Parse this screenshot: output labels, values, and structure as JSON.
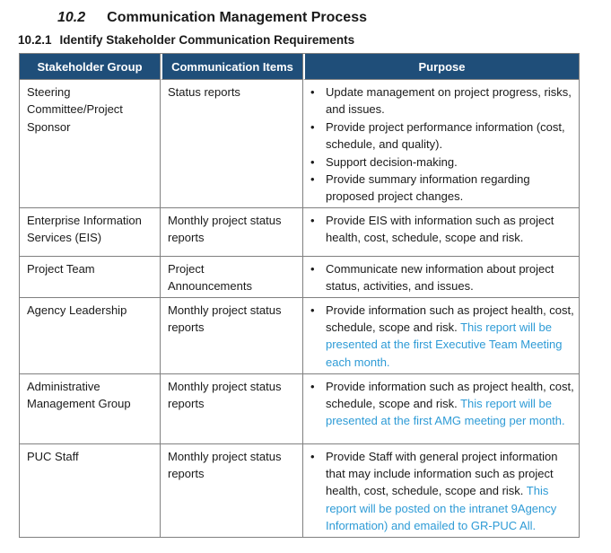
{
  "document": {
    "section": {
      "number": "10.2",
      "title": "Communication Management Process"
    },
    "subsection": {
      "number": "10.2.1",
      "title": "Identify Stakeholder Communication Requirements"
    }
  },
  "colors": {
    "header_bg": "#1F4E79",
    "header_text": "#FFFFFF",
    "body_text": "#1A1A1A",
    "accent_blue": "#2E9BD6",
    "border": "#808080"
  },
  "table": {
    "headers": [
      "Stakeholder Group",
      "Communication Items",
      "Purpose"
    ],
    "rows": [
      {
        "stakeholder": "Steering Committee/Project Sponsor",
        "items": "Status reports",
        "purpose": [
          [
            {
              "text": "Update management on project progress, risks, and issues."
            }
          ],
          [
            {
              "text": "Provide project performance information (cost, schedule, and quality)."
            }
          ],
          [
            {
              "text": "Support decision-making."
            }
          ],
          [
            {
              "text": "Provide summary information regarding proposed project changes."
            }
          ]
        ]
      },
      {
        "stakeholder": "Enterprise Information Services (EIS)",
        "items": "Monthly project status reports",
        "purpose": [
          [
            {
              "text": "Provide EIS with information such as project health, cost, schedule, scope and risk."
            }
          ]
        ]
      },
      {
        "stakeholder": "Project Team",
        "items": "Project\nAnnouncements",
        "purpose": [
          [
            {
              "text": "Communicate new information about project status, activities, and issues."
            }
          ]
        ]
      },
      {
        "stakeholder": "Agency Leadership",
        "items": "Monthly project status reports",
        "purpose": [
          [
            {
              "text": "Provide information such as project health, cost, schedule, scope and risk. "
            },
            {
              "text": "This report will be presented at the first Executive Team Meeting each month.",
              "highlight": true
            }
          ]
        ]
      },
      {
        "stakeholder": "Administrative Management Group",
        "items": "Monthly project status reports",
        "purpose": [
          [
            {
              "text": "Provide information such as project health, cost, schedule, scope and risk. "
            },
            {
              "text": "This report will be presented at the first AMG meeting per month.",
              "highlight": true
            }
          ]
        ]
      },
      {
        "stakeholder": "PUC Staff",
        "items": "Monthly project status reports",
        "purpose": [
          [
            {
              "text": "Provide Staff with general project information that may include information such as project health, cost, schedule, scope and risk. "
            },
            {
              "text": "This report will be posted on the intranet 9Agency Information) and emailed to GR-PUC All.",
              "highlight": true
            }
          ]
        ]
      }
    ]
  }
}
